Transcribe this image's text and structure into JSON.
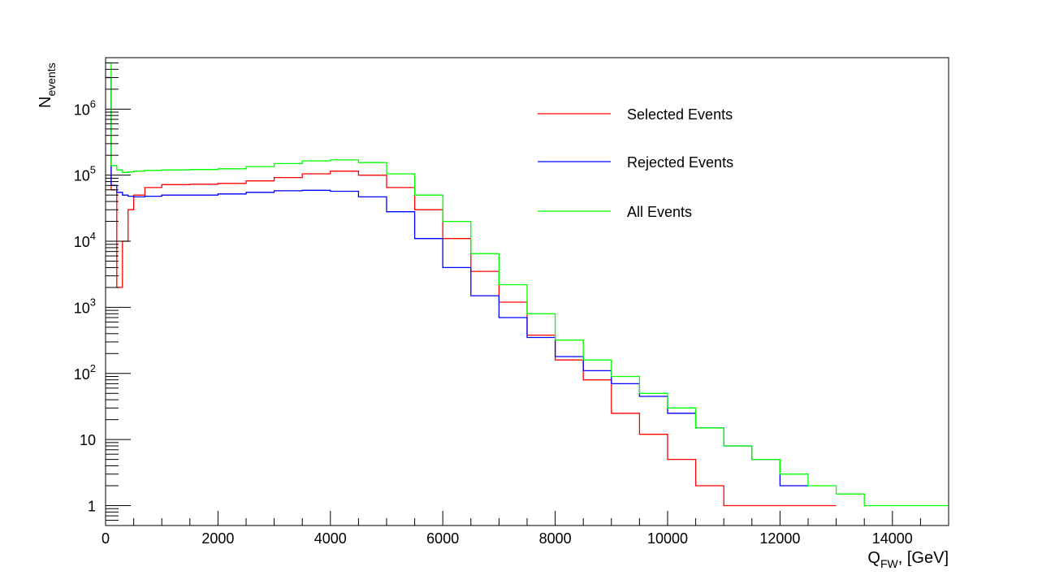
{
  "chart_data": {
    "type": "line",
    "title": "",
    "xlabel": {
      "main": "Q",
      "sub": "FW",
      "rest": ", [GeV]"
    },
    "ylabel": {
      "main": "N",
      "sub": "events"
    },
    "xlim": [
      0,
      15000
    ],
    "ylim": [
      0.5,
      6000000
    ],
    "yscale": "log",
    "grid": false,
    "legend_position": "top-right",
    "x_ticks": [
      {
        "value": 0,
        "label": "0"
      },
      {
        "value": 2000,
        "label": "2000"
      },
      {
        "value": 4000,
        "label": "4000"
      },
      {
        "value": 6000,
        "label": "6000"
      },
      {
        "value": 8000,
        "label": "8000"
      },
      {
        "value": 10000,
        "label": "10000"
      },
      {
        "value": 12000,
        "label": "12000"
      },
      {
        "value": 14000,
        "label": "14000"
      }
    ],
    "y_ticks": [
      {
        "value": 1,
        "base": "1",
        "exp": ""
      },
      {
        "value": 10,
        "base": "10",
        "exp": ""
      },
      {
        "value": 100,
        "base": "10",
        "exp": "2"
      },
      {
        "value": 1000,
        "base": "10",
        "exp": "3"
      },
      {
        "value": 10000,
        "base": "10",
        "exp": "4"
      },
      {
        "value": 100000,
        "base": "10",
        "exp": "5"
      },
      {
        "value": 1000000,
        "base": "10",
        "exp": "6"
      }
    ],
    "series": [
      {
        "name": "Selected Events",
        "color": "#ff0000",
        "x": [
          0,
          100,
          200,
          300,
          400,
          500,
          700,
          1000,
          1500,
          2000,
          2500,
          3000,
          3500,
          4000,
          4500,
          5000,
          5500,
          6000,
          6500,
          7000,
          7500,
          8000,
          8500,
          9000,
          9500,
          10000,
          10500,
          11000,
          11500,
          12000,
          12500
        ],
        "y": [
          3000000,
          60000,
          2000,
          10000,
          30000,
          50000,
          65000,
          72000,
          73000,
          75000,
          82000,
          92000,
          105000,
          115000,
          100000,
          65000,
          30000,
          11000,
          3500,
          1200,
          380,
          160,
          80,
          25,
          12,
          5,
          2,
          1,
          1,
          1,
          1
        ]
      },
      {
        "name": "Rejected Events",
        "color": "#0000ff",
        "x": [
          0,
          100,
          200,
          300,
          400,
          500,
          700,
          1000,
          1500,
          2000,
          2500,
          3000,
          3500,
          4000,
          4500,
          5000,
          5500,
          6000,
          6500,
          7000,
          7500,
          8000,
          8500,
          9000,
          9500,
          10000,
          10500,
          11000,
          11500,
          12000
        ],
        "y": [
          3000000,
          70000,
          55000,
          50000,
          48000,
          47000,
          48000,
          50000,
          50000,
          52000,
          55000,
          58000,
          59000,
          57000,
          47000,
          28000,
          11000,
          4000,
          1500,
          700,
          350,
          180,
          110,
          70,
          45,
          25,
          15,
          8,
          5,
          2
        ]
      },
      {
        "name": "All Events",
        "color": "#00ff00",
        "x": [
          0,
          100,
          200,
          300,
          400,
          500,
          700,
          1000,
          1500,
          2000,
          2500,
          3000,
          3500,
          4000,
          4500,
          5000,
          5500,
          6000,
          6500,
          7000,
          7500,
          8000,
          8500,
          9000,
          9500,
          10000,
          10500,
          11000,
          11500,
          12000,
          12500,
          13000,
          13500,
          14000,
          14500,
          15000
        ],
        "y": [
          5000000,
          140000,
          120000,
          110000,
          112000,
          115000,
          118000,
          120000,
          122000,
          125000,
          135000,
          150000,
          165000,
          170000,
          155000,
          105000,
          50000,
          20000,
          6500,
          2200,
          800,
          320,
          160,
          90,
          50,
          30,
          15,
          8,
          5,
          3,
          2,
          1.5,
          1,
          1,
          1,
          1
        ]
      }
    ]
  }
}
